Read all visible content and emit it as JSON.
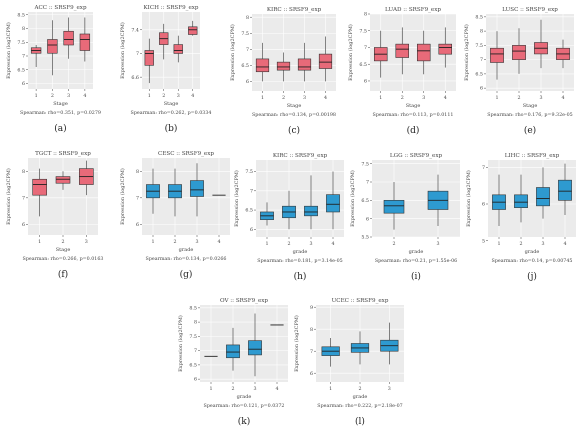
{
  "chart_data": [
    {
      "id": "a",
      "type": "boxplot",
      "title": "ACC :: SRSF9_exp",
      "xlabel": "Stage",
      "ylabel": "Expression (log2CPM)",
      "ylim": [
        5.8,
        8.6
      ],
      "yticks": [
        6.0,
        6.5,
        7.0,
        7.5,
        8.0,
        8.5
      ],
      "categories": [
        "1",
        "2",
        "3",
        "4"
      ],
      "color": "#e86a79",
      "boxes": [
        [
          6.6,
          7.1,
          7.2,
          7.3,
          7.4
        ],
        [
          6.3,
          7.1,
          7.4,
          7.6,
          8.3
        ],
        [
          6.9,
          7.4,
          7.6,
          7.9,
          8.4
        ],
        [
          6.8,
          7.2,
          7.6,
          7.8,
          8.4
        ]
      ],
      "stat": "Spearman: rho=0.351, p=0.0279",
      "label": "(a)"
    },
    {
      "id": "b",
      "type": "boxplot",
      "title": "KICH :: SRSF9_exp",
      "xlabel": "Stage",
      "ylabel": "Expression (log2CPM)",
      "ylim": [
        6.4,
        7.7
      ],
      "yticks": [
        6.6,
        7.0,
        7.4
      ],
      "categories": [
        "1",
        "2",
        "3",
        "4"
      ],
      "color": "#e86a79",
      "boxes": [
        [
          6.5,
          6.8,
          7.0,
          7.05,
          7.25
        ],
        [
          6.9,
          7.15,
          7.25,
          7.35,
          7.5
        ],
        [
          6.85,
          7.0,
          7.05,
          7.15,
          7.3
        ],
        [
          7.3,
          7.32,
          7.4,
          7.45,
          7.55
        ]
      ],
      "stat": "Spearman: rho=0.262, p=0.0334",
      "label": "(b)"
    },
    {
      "id": "c",
      "type": "boxplot",
      "title": "KIRC :: SRSF9_exp",
      "xlabel": "Stage",
      "ylabel": "Expression (log2CPM)",
      "ylim": [
        5.7,
        8.1
      ],
      "yticks": [
        6.0,
        6.5,
        7.0,
        7.5,
        8.0
      ],
      "categories": [
        "1",
        "2",
        "3",
        "4"
      ],
      "color": "#e86a79",
      "boxes": [
        [
          6.0,
          6.3,
          6.45,
          6.7,
          7.2
        ],
        [
          6.0,
          6.35,
          6.45,
          6.6,
          6.9
        ],
        [
          6.0,
          6.35,
          6.45,
          6.7,
          7.2
        ],
        [
          6.0,
          6.4,
          6.6,
          6.85,
          7.4
        ]
      ],
      "stat": "Spearman: rho=0.134, p=0.00198",
      "label": "(c)"
    },
    {
      "id": "d",
      "type": "boxplot",
      "title": "LUAD :: SRSF9_exp",
      "xlabel": "Stage",
      "ylabel": "Expression (log2CPM)",
      "ylim": [
        5.7,
        8.0
      ],
      "yticks": [
        6.0,
        6.5,
        7.0,
        7.5,
        8.0
      ],
      "categories": [
        "1",
        "2",
        "3",
        "4"
      ],
      "color": "#e86a79",
      "boxes": [
        [
          6.1,
          6.6,
          6.8,
          7.0,
          7.5
        ],
        [
          6.2,
          6.7,
          6.95,
          7.1,
          7.6
        ],
        [
          6.2,
          6.6,
          6.9,
          7.1,
          7.5
        ],
        [
          6.4,
          6.8,
          7.0,
          7.1,
          7.6
        ]
      ],
      "stat": "Spearman: rho=0.113, p=0.0111",
      "label": "(d)"
    },
    {
      "id": "e",
      "type": "boxplot",
      "title": "LUSC :: SRSF9_exp",
      "xlabel": "Stage",
      "ylabel": "Expression (log2CPM)",
      "ylim": [
        5.9,
        8.6
      ],
      "yticks": [
        6.0,
        6.5,
        7.0,
        7.5,
        8.0,
        8.5
      ],
      "categories": [
        "1",
        "2",
        "3",
        "4"
      ],
      "color": "#e86a79",
      "boxes": [
        [
          6.3,
          6.9,
          7.2,
          7.4,
          8.0
        ],
        [
          6.5,
          7.0,
          7.3,
          7.5,
          8.1
        ],
        [
          6.7,
          7.2,
          7.4,
          7.6,
          8.4
        ],
        [
          6.7,
          7.0,
          7.2,
          7.4,
          7.7
        ]
      ],
      "stat": "Spearman: rho=0.176, p=9.32e-05",
      "label": "(e)"
    },
    {
      "id": "f",
      "type": "boxplot",
      "title": "TGCT :: SRSF9_exp",
      "xlabel": "Stage",
      "ylabel": "Expression (log2CPM)",
      "ylim": [
        5.6,
        8.5
      ],
      "yticks": [
        6,
        7,
        8
      ],
      "categories": [
        "1",
        "2",
        "3"
      ],
      "color": "#e86a79",
      "boxes": [
        [
          6.3,
          7.1,
          7.5,
          7.7,
          8.1
        ],
        [
          7.3,
          7.55,
          7.7,
          7.8,
          8.0
        ],
        [
          7.1,
          7.5,
          7.8,
          8.1,
          8.4
        ]
      ],
      "stat": "Spearman: rho=0.266, p=0.0163",
      "label": "(f)"
    },
    {
      "id": "g",
      "type": "boxplot",
      "title": "CESC :: SRSF9_exp",
      "xlabel": "grade",
      "ylabel": "Expression (log2CPM)",
      "ylim": [
        5.6,
        8.5
      ],
      "yticks": [
        6,
        7,
        8
      ],
      "categories": [
        "1",
        "2",
        "3",
        "4"
      ],
      "color": "#2e9ad0",
      "boxes": [
        [
          6.4,
          7.0,
          7.25,
          7.5,
          8.1
        ],
        [
          6.3,
          7.0,
          7.25,
          7.5,
          8.1
        ],
        [
          6.3,
          7.05,
          7.3,
          7.65,
          8.3
        ],
        [
          7.1,
          7.1,
          7.1,
          7.1,
          7.1
        ]
      ],
      "stat": "Spearman: rho=0.134, p=0.0266",
      "label": "(g)"
    },
    {
      "id": "h",
      "type": "boxplot",
      "title": "KIRC :: SRSF9_exp",
      "xlabel": "grade",
      "ylabel": "Expression (log2CPM)",
      "ylim": [
        5.8,
        7.8
      ],
      "yticks": [
        6.0,
        6.5,
        7.0,
        7.5
      ],
      "categories": [
        "1",
        "2",
        "3",
        "4"
      ],
      "color": "#2e9ad0",
      "boxes": [
        [
          6.1,
          6.25,
          6.35,
          6.45,
          6.7
        ],
        [
          6.0,
          6.3,
          6.45,
          6.6,
          7.0
        ],
        [
          6.0,
          6.35,
          6.45,
          6.6,
          7.4
        ],
        [
          6.0,
          6.45,
          6.65,
          6.9,
          7.5
        ]
      ],
      "stat": "Spearman: rho=0.181, p=3.14e-05",
      "label": "(h)"
    },
    {
      "id": "i",
      "type": "boxplot",
      "title": "LGG :: SRSF9_exp",
      "xlabel": "grade",
      "ylabel": "Expression (log2CPM)",
      "ylim": [
        5.5,
        7.6
      ],
      "yticks": [
        5.5,
        6.0,
        6.5,
        7.0,
        7.5
      ],
      "categories": [
        "2",
        "3"
      ],
      "color": "#2e9ad0",
      "boxes": [
        [
          5.7,
          6.15,
          6.35,
          6.5,
          7.0
        ],
        [
          5.8,
          6.25,
          6.5,
          6.75,
          7.2
        ]
      ],
      "stat": "Spearman: rho=0.21, p=1.55e-06",
      "label": "(i)"
    },
    {
      "id": "j",
      "type": "boxplot",
      "title": "LIHC :: SRSF9_exp",
      "xlabel": "grade",
      "ylabel": "Expression (log2CPM)",
      "ylim": [
        5.1,
        7.2
      ],
      "yticks": [
        5,
        6,
        7
      ],
      "categories": [
        "1",
        "2",
        "3",
        "4"
      ],
      "color": "#2e9ad0",
      "boxes": [
        [
          5.4,
          5.85,
          6.05,
          6.25,
          6.8
        ],
        [
          5.5,
          5.9,
          6.05,
          6.25,
          6.8
        ],
        [
          5.6,
          5.95,
          6.15,
          6.45,
          7.0
        ],
        [
          5.7,
          6.1,
          6.35,
          6.65,
          7.1
        ]
      ],
      "stat": "Spearman: rho=0.14, p=0.00745",
      "label": "(j)"
    },
    {
      "id": "k",
      "type": "boxplot",
      "title": "OV :: SRSF9_exp",
      "xlabel": "grade",
      "ylabel": "Expression (log2CPM)",
      "ylim": [
        5.9,
        8.6
      ],
      "yticks": [
        6.0,
        6.5,
        7.0,
        7.5,
        8.0,
        8.5
      ],
      "categories": [
        "1",
        "2",
        "3",
        "4"
      ],
      "color": "#2e9ad0",
      "boxes": [
        [
          6.8,
          6.8,
          6.8,
          6.8,
          6.8
        ],
        [
          6.3,
          6.75,
          6.95,
          7.2,
          7.8
        ],
        [
          6.1,
          6.85,
          7.05,
          7.35,
          8.3
        ],
        [
          7.9,
          7.9,
          7.9,
          7.9,
          7.9
        ]
      ],
      "stat": "Spearman: rho=0.121, p=0.0372",
      "label": "(k)"
    },
    {
      "id": "l",
      "type": "boxplot",
      "title": "UCEC :: SRSF9_exp",
      "xlabel": "grade",
      "ylabel": "Expression (log2CPM)",
      "ylim": [
        5.6,
        9.1
      ],
      "yticks": [
        6,
        7,
        8,
        9
      ],
      "categories": [
        "1",
        "2",
        "3"
      ],
      "color": "#2e9ad0",
      "boxes": [
        [
          6.3,
          6.8,
          7.0,
          7.2,
          7.6
        ],
        [
          6.4,
          6.95,
          7.15,
          7.35,
          7.9
        ],
        [
          6.4,
          7.0,
          7.25,
          7.5,
          8.3
        ]
      ],
      "stat": "Spearman: rho=0.222, p=2.18e-07",
      "label": "(l)"
    }
  ]
}
